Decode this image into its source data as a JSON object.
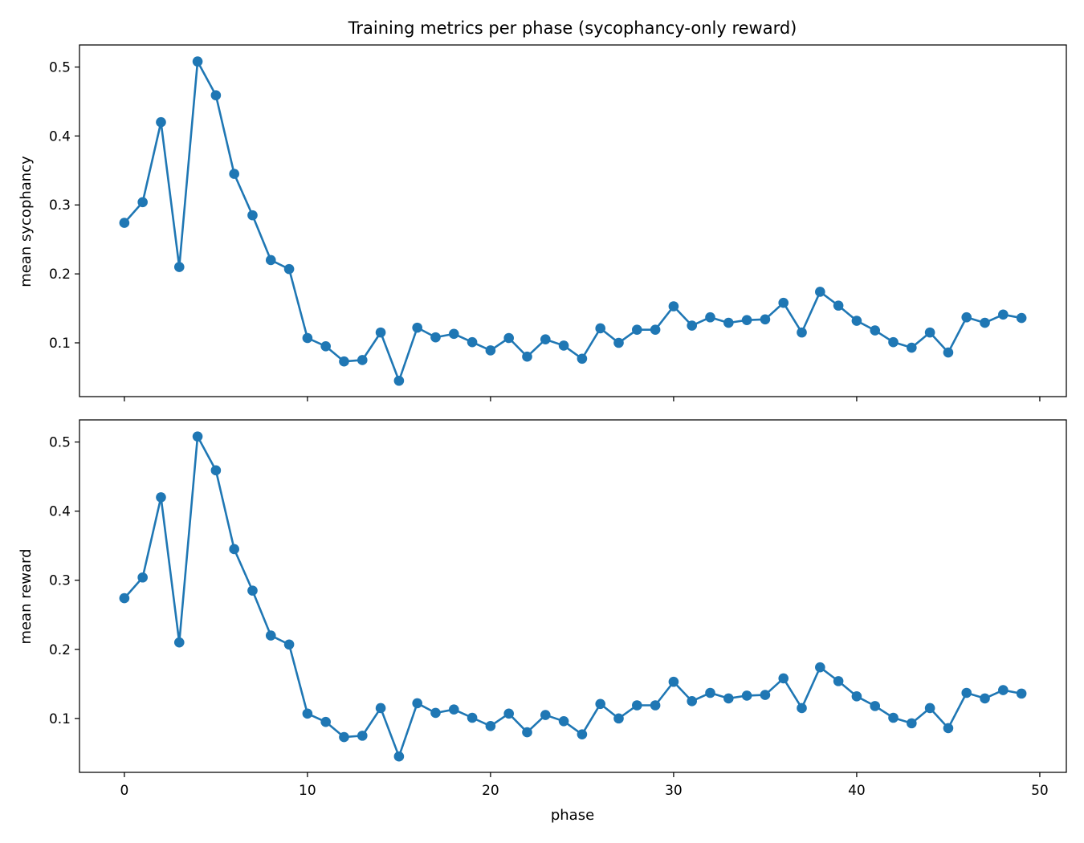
{
  "chart_data": {
    "type": "line",
    "title": "Training metrics per phase (sycophancy-only reward)",
    "xlabel": "phase",
    "shared_x": true,
    "xlim": [
      -2.45,
      51.45
    ],
    "xticks": [
      0,
      10,
      20,
      30,
      40,
      50
    ],
    "x": [
      0,
      1,
      2,
      3,
      4,
      5,
      6,
      7,
      8,
      9,
      10,
      11,
      12,
      13,
      14,
      15,
      16,
      17,
      18,
      19,
      20,
      21,
      22,
      23,
      24,
      25,
      26,
      27,
      28,
      29,
      30,
      31,
      32,
      33,
      34,
      35,
      36,
      37,
      38,
      39,
      40,
      41,
      42,
      43,
      44,
      45,
      46,
      47,
      48,
      49
    ],
    "color": "#1f77b4",
    "marker": "circle",
    "grid": false,
    "panels": [
      {
        "ylabel": "mean sycophancy",
        "ylim": [
          0.022,
          0.532
        ],
        "yticks": [
          0.1,
          0.2,
          0.3,
          0.4,
          0.5
        ],
        "ytick_labels": [
          "0.1",
          "0.2",
          "0.3",
          "0.4",
          "0.5"
        ],
        "values": [
          0.274,
          0.304,
          0.42,
          0.21,
          0.508,
          0.459,
          0.345,
          0.285,
          0.22,
          0.207,
          0.107,
          0.095,
          0.073,
          0.075,
          0.115,
          0.045,
          0.122,
          0.108,
          0.113,
          0.101,
          0.089,
          0.107,
          0.08,
          0.105,
          0.096,
          0.077,
          0.121,
          0.1,
          0.119,
          0.119,
          0.153,
          0.125,
          0.137,
          0.129,
          0.133,
          0.134,
          0.158,
          0.115,
          0.174,
          0.154,
          0.132,
          0.118,
          0.101,
          0.093,
          0.115,
          0.086,
          0.137,
          0.129,
          0.141,
          0.136
        ]
      },
      {
        "ylabel": "mean reward",
        "ylim": [
          0.022,
          0.532
        ],
        "yticks": [
          0.1,
          0.2,
          0.3,
          0.4,
          0.5
        ],
        "ytick_labels": [
          "0.1",
          "0.2",
          "0.3",
          "0.4",
          "0.5"
        ],
        "xtick_labels": [
          "0",
          "10",
          "20",
          "30",
          "40",
          "50"
        ],
        "values": [
          0.274,
          0.304,
          0.42,
          0.21,
          0.508,
          0.459,
          0.345,
          0.285,
          0.22,
          0.207,
          0.107,
          0.095,
          0.073,
          0.075,
          0.115,
          0.045,
          0.122,
          0.108,
          0.113,
          0.101,
          0.089,
          0.107,
          0.08,
          0.105,
          0.096,
          0.077,
          0.121,
          0.1,
          0.119,
          0.119,
          0.153,
          0.125,
          0.137,
          0.129,
          0.133,
          0.134,
          0.158,
          0.115,
          0.174,
          0.154,
          0.132,
          0.118,
          0.101,
          0.093,
          0.115,
          0.086,
          0.137,
          0.129,
          0.141,
          0.136
        ]
      }
    ]
  }
}
